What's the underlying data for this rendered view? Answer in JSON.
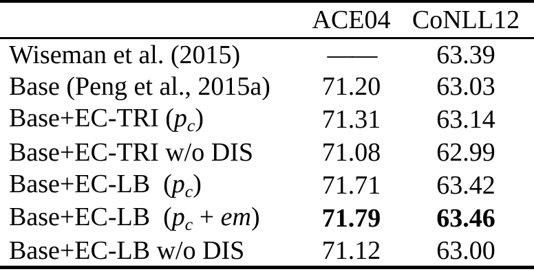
{
  "colors": {
    "text": "#010101",
    "background": "#ffffff",
    "rule": "#010101"
  },
  "table": {
    "header": {
      "label": "",
      "col1": "ACE04",
      "col2": "CoNLL12"
    },
    "rows": [
      {
        "label_parts": [
          {
            "t": "Wiseman et al. (2015)",
            "s": "n"
          }
        ],
        "ace04": "——",
        "conll12": "63.39",
        "bold": false,
        "dash": true
      },
      {
        "label_parts": [
          {
            "t": "Base (Peng et al., 2015a)",
            "s": "n"
          }
        ],
        "ace04": "71.20",
        "conll12": "63.03",
        "bold": false,
        "dash": false
      },
      {
        "label_parts": [
          {
            "t": "Base+EC-TRI (",
            "s": "n"
          },
          {
            "t": "p",
            "s": "i"
          },
          {
            "t": "c",
            "s": "sub"
          },
          {
            "t": ")",
            "s": "n"
          }
        ],
        "ace04": "71.31",
        "conll12": "63.14",
        "bold": false,
        "dash": false
      },
      {
        "label_parts": [
          {
            "t": "Base+EC-TRI w/o DIS",
            "s": "n"
          }
        ],
        "ace04": "71.08",
        "conll12": "62.99",
        "bold": false,
        "dash": false
      },
      {
        "label_parts": [
          {
            "t": "Base+EC-LB  (",
            "s": "n"
          },
          {
            "t": "p",
            "s": "i"
          },
          {
            "t": "c",
            "s": "sub"
          },
          {
            "t": ")",
            "s": "n"
          }
        ],
        "ace04": "71.71",
        "conll12": "63.42",
        "bold": false,
        "dash": false
      },
      {
        "label_parts": [
          {
            "t": "Base+EC-LB  (",
            "s": "n"
          },
          {
            "t": "p",
            "s": "i"
          },
          {
            "t": "c",
            "s": "sub"
          },
          {
            "t": " + ",
            "s": "n"
          },
          {
            "t": "em",
            "s": "i"
          },
          {
            "t": ")",
            "s": "n"
          }
        ],
        "ace04": "71.79",
        "conll12": "63.46",
        "bold": true,
        "dash": false
      },
      {
        "label_parts": [
          {
            "t": "Base+EC-LB w/o DIS",
            "s": "n"
          }
        ],
        "ace04": "71.12",
        "conll12": "63.00",
        "bold": false,
        "dash": false
      }
    ]
  }
}
